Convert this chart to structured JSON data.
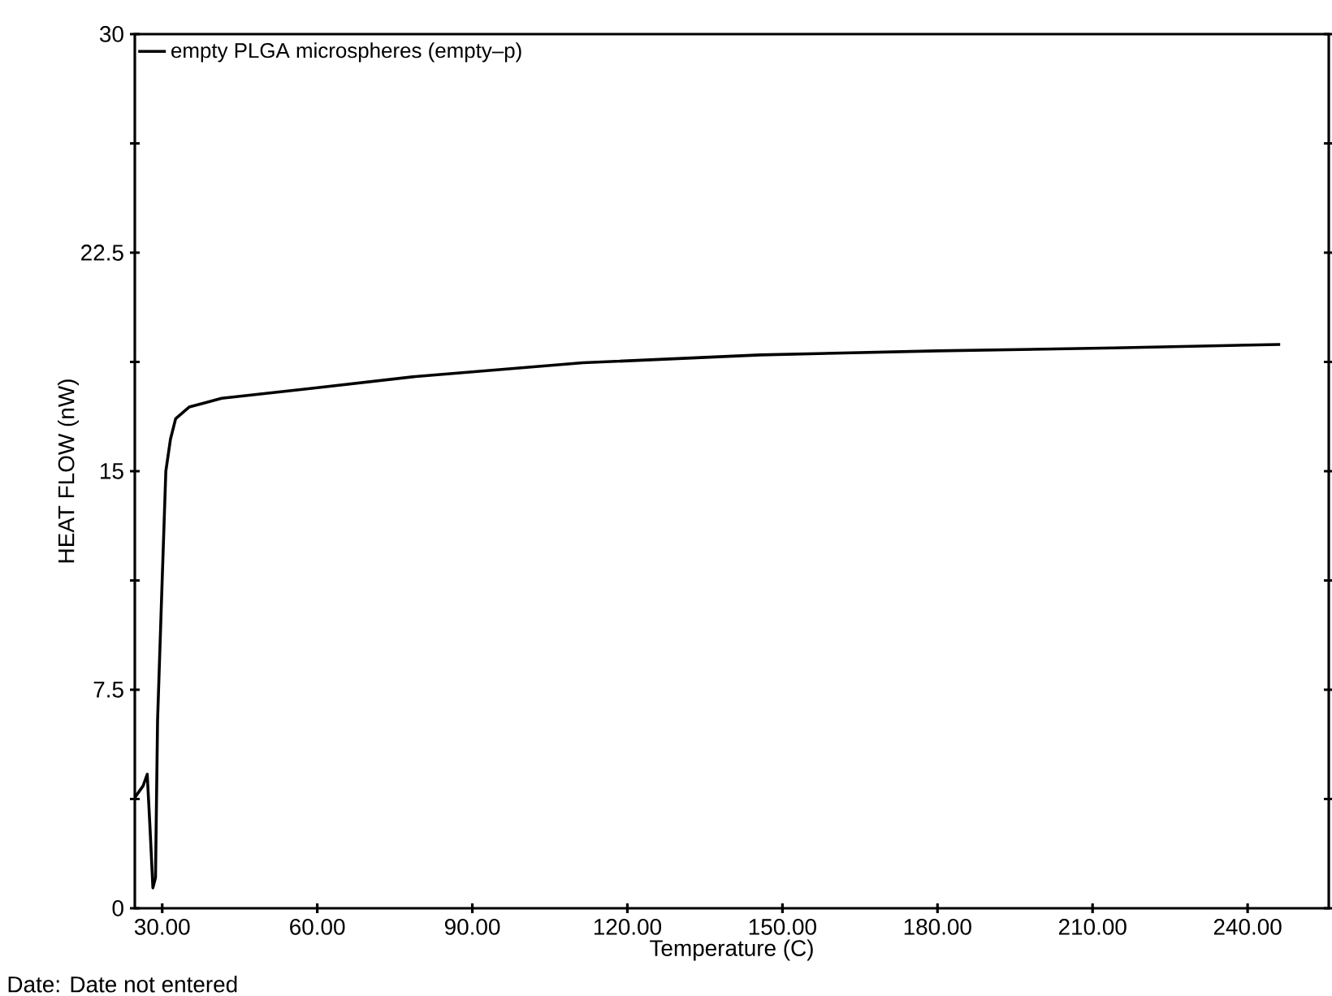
{
  "chart_data": {
    "type": "line",
    "xlabel": "Temperature (C)",
    "ylabel": "HEAT FLOW     (nW)",
    "annotations": [
      "Date: Date not entered"
    ],
    "xlim": [
      24.7,
      255.7
    ],
    "ylim": [
      0,
      30
    ],
    "xticks": [
      {
        "value": 30,
        "label": "30.00"
      },
      {
        "value": 60,
        "label": "60.00"
      },
      {
        "value": 90,
        "label": "90.00"
      },
      {
        "value": 120,
        "label": "120.00"
      },
      {
        "value": 150,
        "label": "150.00"
      },
      {
        "value": 180,
        "label": "180.00"
      },
      {
        "value": 210,
        "label": "210.00"
      },
      {
        "value": 240,
        "label": "240.00"
      }
    ],
    "yticks": [
      0,
      {
        "value": 3.75,
        "label": null
      },
      7.5,
      {
        "value": 11.25,
        "label": null
      },
      15,
      {
        "value": 18.75,
        "label": null
      },
      22.5,
      {
        "value": 26.25,
        "label": null
      },
      30
    ],
    "grid": false,
    "legend": "top left",
    "marker": "none",
    "line_style": "solid",
    "series": [
      {
        "name": "empty PLGA microspheres    (empty–p)",
        "color": "#000000",
        "x": [
          24.7,
          26.3,
          27.1,
          27.6,
          28.2,
          28.7,
          29.1,
          30,
          30.7,
          31.6,
          32.6,
          35.2,
          41.5,
          59.3,
          79,
          111.4,
          145.7,
          180,
          214.2,
          246.3
        ],
        "values": [
          3.8,
          4.2,
          4.6,
          2.9,
          0.7,
          1.05,
          6.45,
          11.3,
          15,
          16.1,
          16.8,
          17.2,
          17.5,
          17.85,
          18.25,
          18.72,
          18.99,
          19.13,
          19.23,
          19.35
        ]
      }
    ]
  }
}
